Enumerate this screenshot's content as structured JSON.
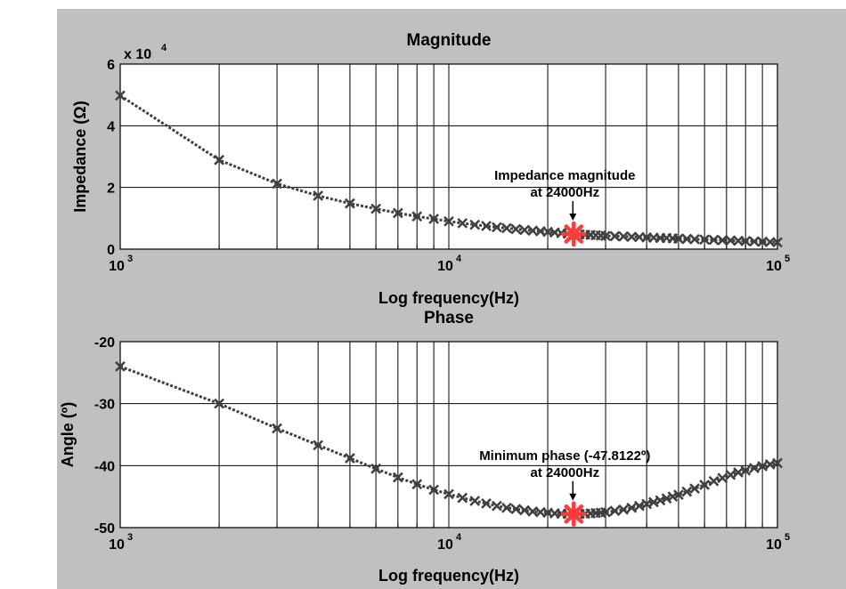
{
  "chart_data": [
    {
      "type": "line",
      "title": "Magnitude",
      "xlabel": "Log frequency(Hz)",
      "ylabel": "Impedance (Ω)",
      "xscale": "log",
      "xlim": [
        1000,
        100000
      ],
      "ylim": [
        0,
        6
      ],
      "y_multiplier_label": "x 10",
      "y_multiplier_exp": "4",
      "xticks": [
        {
          "base": "10",
          "exp": "3",
          "value": 1000
        },
        {
          "base": "10",
          "exp": "4",
          "value": 10000
        },
        {
          "base": "10",
          "exp": "5",
          "value": 100000
        }
      ],
      "yticks": [
        "0",
        "2",
        "4",
        "6"
      ],
      "grid": true,
      "series": [
        {
          "marker": "x",
          "line_style": "dotted",
          "color": "#404040",
          "x": [
            1000,
            2000,
            3000,
            4000,
            5000,
            6000,
            7000,
            8000,
            9000,
            10000,
            11000,
            12000,
            13000,
            14000,
            15000,
            16000,
            17000,
            18000,
            19000,
            20000,
            21000,
            22000,
            23000,
            24000,
            25000,
            26000,
            27000,
            28000,
            29000,
            30000,
            32000,
            34000,
            36000,
            38000,
            40000,
            42000,
            44000,
            46000,
            48000,
            50000,
            53000,
            56000,
            60000,
            64000,
            68000,
            72000,
            76000,
            80000,
            85000,
            90000,
            95000,
            100000
          ],
          "y": [
            4.98,
            2.89,
            2.12,
            1.73,
            1.48,
            1.31,
            1.17,
            1.06,
            0.98,
            0.9,
            0.84,
            0.79,
            0.75,
            0.71,
            0.68,
            0.65,
            0.62,
            0.6,
            0.58,
            0.56,
            0.54,
            0.52,
            0.5,
            0.49,
            0.48,
            0.47,
            0.46,
            0.45,
            0.44,
            0.43,
            0.42,
            0.41,
            0.4,
            0.39,
            0.38,
            0.37,
            0.36,
            0.36,
            0.35,
            0.34,
            0.33,
            0.32,
            0.31,
            0.3,
            0.29,
            0.28,
            0.27,
            0.26,
            0.25,
            0.24,
            0.23,
            0.22
          ]
        }
      ],
      "highlight": {
        "x": 24000,
        "y": 0.49,
        "color": "#ff3b3b"
      },
      "annotation": {
        "line1": "Impedance magnitude",
        "line2": "at 24000Hz"
      }
    },
    {
      "type": "line",
      "title": "Phase",
      "xlabel": "Log frequency(Hz)",
      "ylabel": "Angle (º)",
      "xscale": "log",
      "xlim": [
        1000,
        100000
      ],
      "ylim": [
        -50,
        -20
      ],
      "xticks": [
        {
          "base": "10",
          "exp": "3",
          "value": 1000
        },
        {
          "base": "10",
          "exp": "4",
          "value": 10000
        },
        {
          "base": "10",
          "exp": "5",
          "value": 100000
        }
      ],
      "yticks": [
        "-50",
        "-40",
        "-30",
        "-20"
      ],
      "grid": true,
      "series": [
        {
          "marker": "x",
          "line_style": "dotted",
          "color": "#404040",
          "x": [
            1000,
            2000,
            3000,
            4000,
            5000,
            6000,
            7000,
            8000,
            9000,
            10000,
            11000,
            12000,
            13000,
            14000,
            15000,
            16000,
            17000,
            18000,
            19000,
            20000,
            21000,
            22000,
            23000,
            24000,
            25000,
            26000,
            27000,
            28000,
            29000,
            30000,
            32000,
            34000,
            36000,
            38000,
            40000,
            42000,
            44000,
            46000,
            48000,
            50000,
            53000,
            56000,
            60000,
            64000,
            68000,
            72000,
            76000,
            80000,
            85000,
            90000,
            95000,
            100000
          ],
          "y": [
            -24.0,
            -30.0,
            -34.0,
            -36.7,
            -38.8,
            -40.5,
            -41.9,
            -43.0,
            -43.9,
            -44.6,
            -45.2,
            -45.7,
            -46.1,
            -46.5,
            -46.8,
            -47.0,
            -47.2,
            -47.4,
            -47.5,
            -47.6,
            -47.7,
            -47.75,
            -47.8,
            -47.8122,
            -47.8,
            -47.75,
            -47.7,
            -47.65,
            -47.6,
            -47.5,
            -47.3,
            -47.1,
            -46.8,
            -46.5,
            -46.2,
            -45.9,
            -45.6,
            -45.3,
            -45.0,
            -44.7,
            -44.2,
            -43.7,
            -43.1,
            -42.5,
            -42.0,
            -41.5,
            -41.1,
            -40.8,
            -40.4,
            -40.1,
            -39.8,
            -39.6
          ]
        }
      ],
      "highlight": {
        "x": 24000,
        "y": -47.8122,
        "color": "#ff3b3b"
      },
      "annotation": {
        "line1": "Minimum phase (-47.8122º)",
        "line2": "at 24000Hz"
      }
    }
  ]
}
